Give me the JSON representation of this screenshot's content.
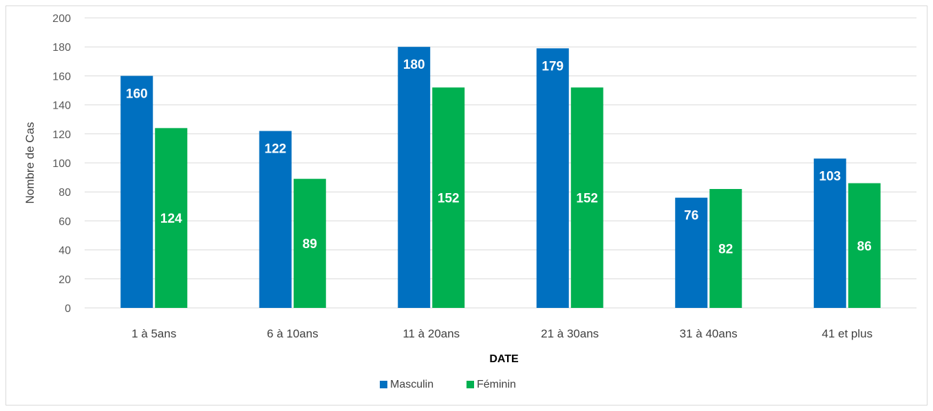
{
  "chart_data": {
    "type": "bar",
    "categories": [
      "1 à 5ans",
      "6 à 10ans",
      "11 à 20ans",
      "21 à 30ans",
      "31 à 40ans",
      "41 et plus"
    ],
    "series": [
      {
        "name": "Masculin",
        "color": "#0070c0",
        "values": [
          160,
          122,
          180,
          179,
          76,
          103
        ]
      },
      {
        "name": "Féminin",
        "color": "#00b050",
        "values": [
          124,
          89,
          152,
          152,
          82,
          86
        ]
      }
    ],
    "xlabel": "DATE",
    "ylabel": "Nombre de Cas",
    "ylim": [
      0,
      200
    ],
    "yticks": [
      0,
      20,
      40,
      60,
      80,
      100,
      120,
      140,
      160,
      180,
      200
    ],
    "grid": true,
    "legend_position": "bottom",
    "data_labels": true,
    "gridline_color": "#d9d9d9"
  }
}
